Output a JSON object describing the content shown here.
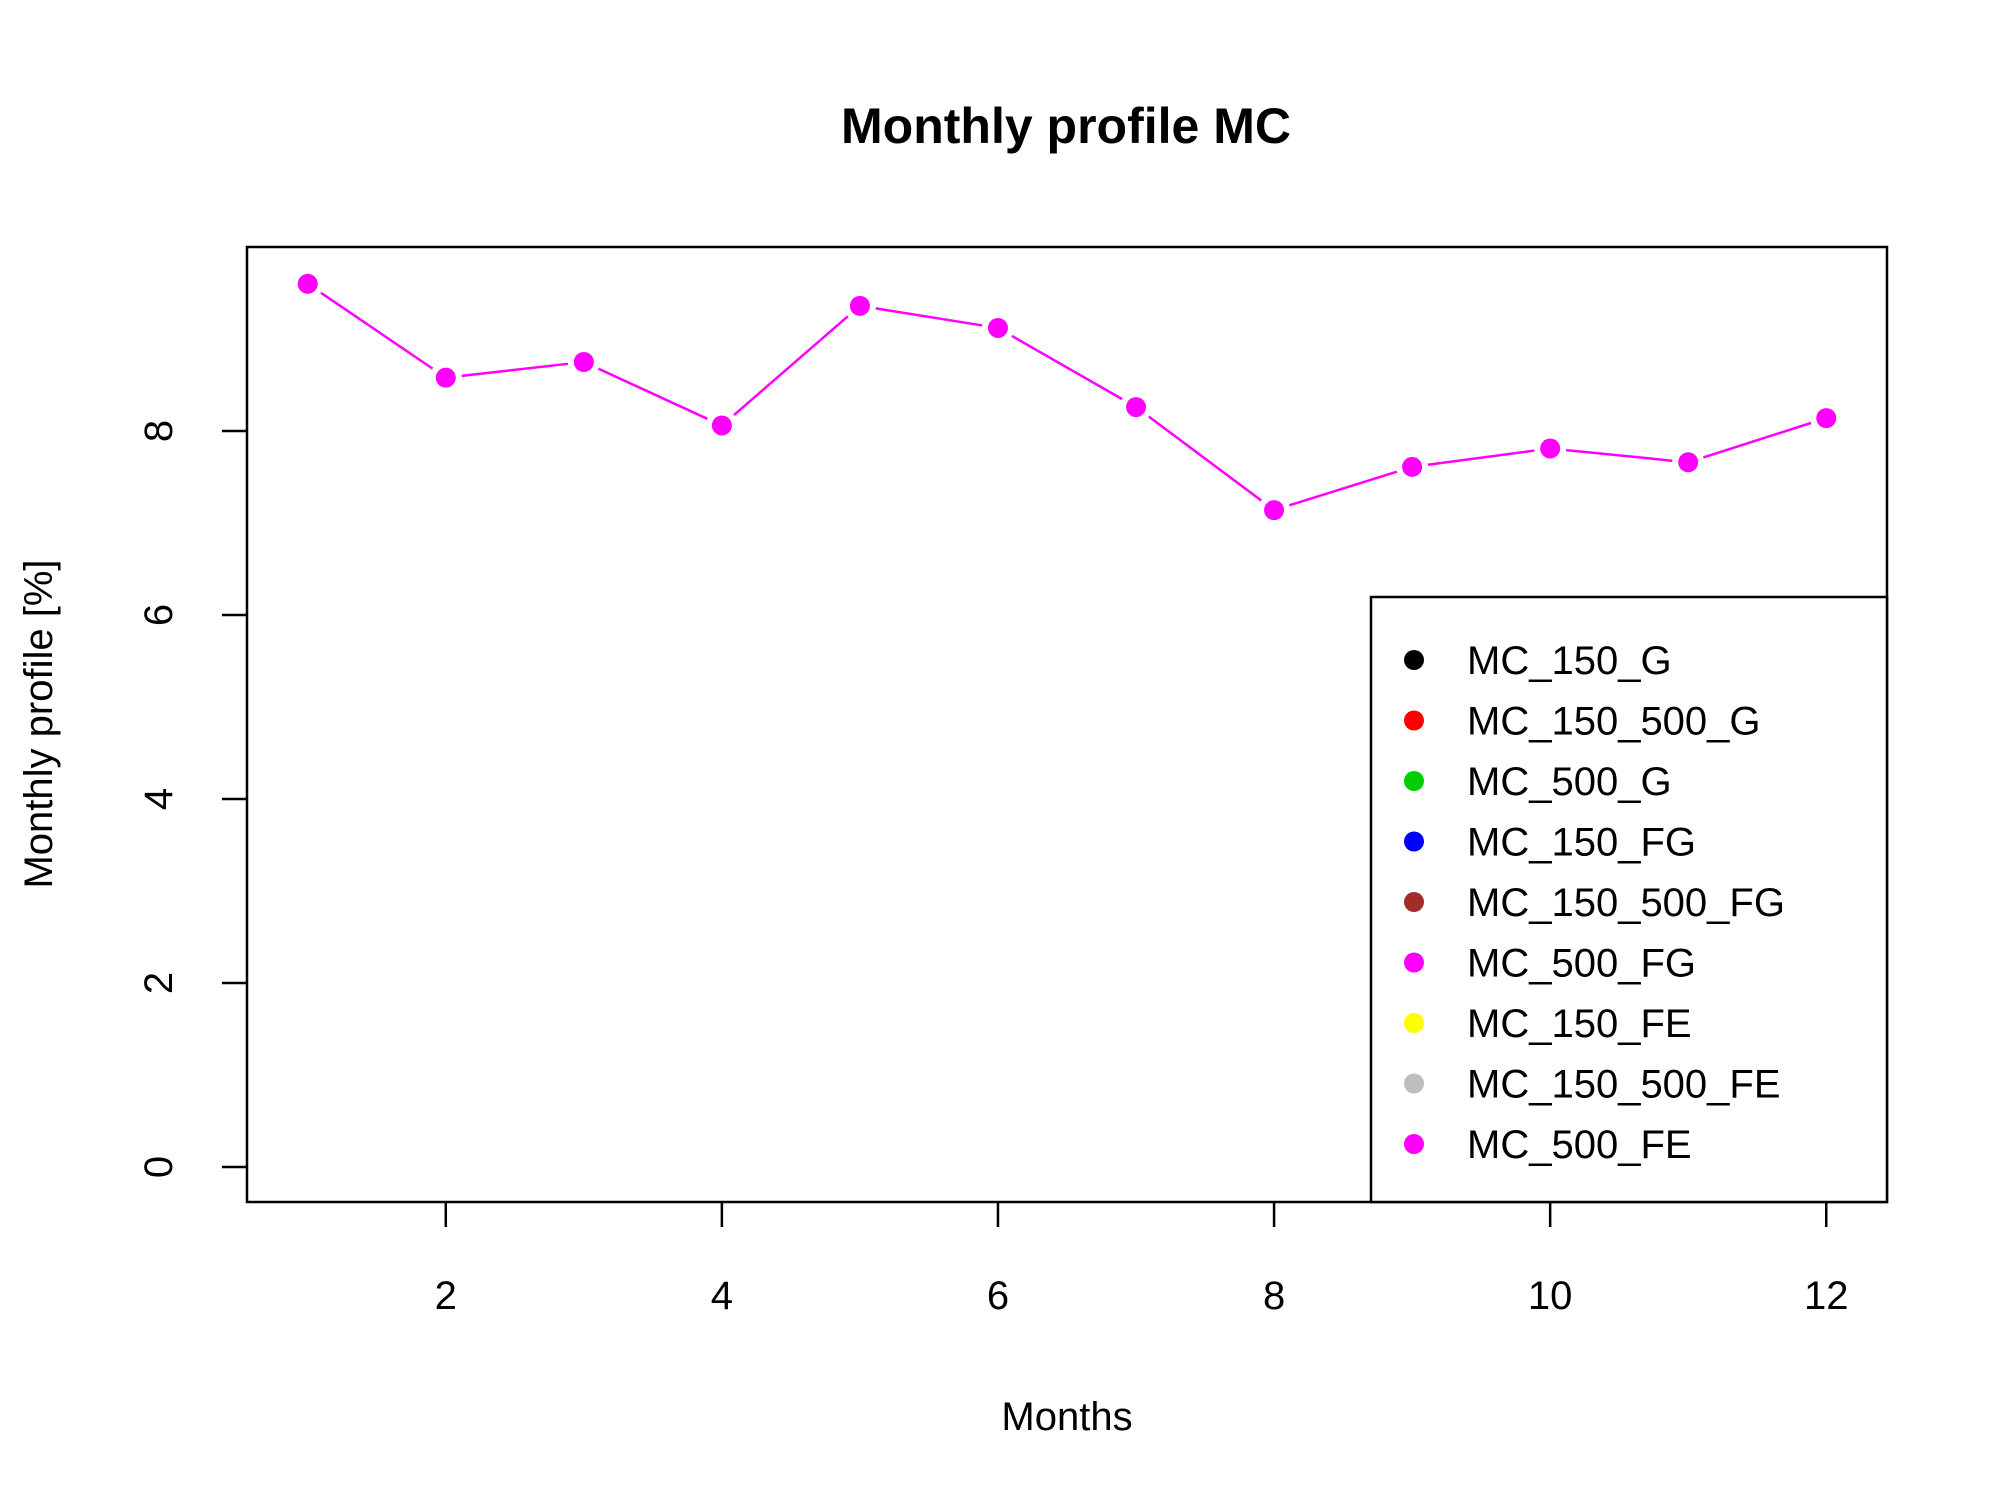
{
  "chart_data": {
    "type": "line",
    "title": "Monthly profile MC",
    "xlabel": "Months",
    "ylabel": "Monthly profile [%]",
    "xlim": [
      0.56,
      12.44
    ],
    "ylim": [
      -0.38,
      10.0
    ],
    "x_ticks": [
      2,
      4,
      6,
      8,
      10,
      12
    ],
    "y_ticks": [
      0,
      2,
      4,
      6,
      8
    ],
    "x_tick_labels": [
      "2",
      "4",
      "6",
      "8",
      "10",
      "12"
    ],
    "y_tick_labels": [
      "0",
      "2",
      "4",
      "6",
      "8"
    ],
    "grid": false,
    "legend_position": "bottom-right",
    "legend": [
      {
        "name": "MC_150_G",
        "color": "#000000"
      },
      {
        "name": "MC_150_500_G",
        "color": "#ff0000"
      },
      {
        "name": "MC_500_G",
        "color": "#00cd00"
      },
      {
        "name": "MC_150_FG",
        "color": "#0000ff"
      },
      {
        "name": "MC_150_500_FG",
        "color": "#a52a2a"
      },
      {
        "name": "MC_500_FG",
        "color": "#ff00ff"
      },
      {
        "name": "MC_150_FE",
        "color": "#ffff00"
      },
      {
        "name": "MC_150_500_FE",
        "color": "#bebebe"
      },
      {
        "name": "MC_500_FE",
        "color": "#ff00ff"
      }
    ],
    "x": [
      1,
      2,
      3,
      4,
      5,
      6,
      7,
      8,
      9,
      10,
      11,
      12
    ],
    "series": [
      {
        "name": "MC_500_FE",
        "color": "#ff00ff",
        "values": [
          9.6,
          8.58,
          8.75,
          8.06,
          9.36,
          9.12,
          8.26,
          7.14,
          7.61,
          7.81,
          7.66,
          8.14
        ]
      }
    ]
  }
}
